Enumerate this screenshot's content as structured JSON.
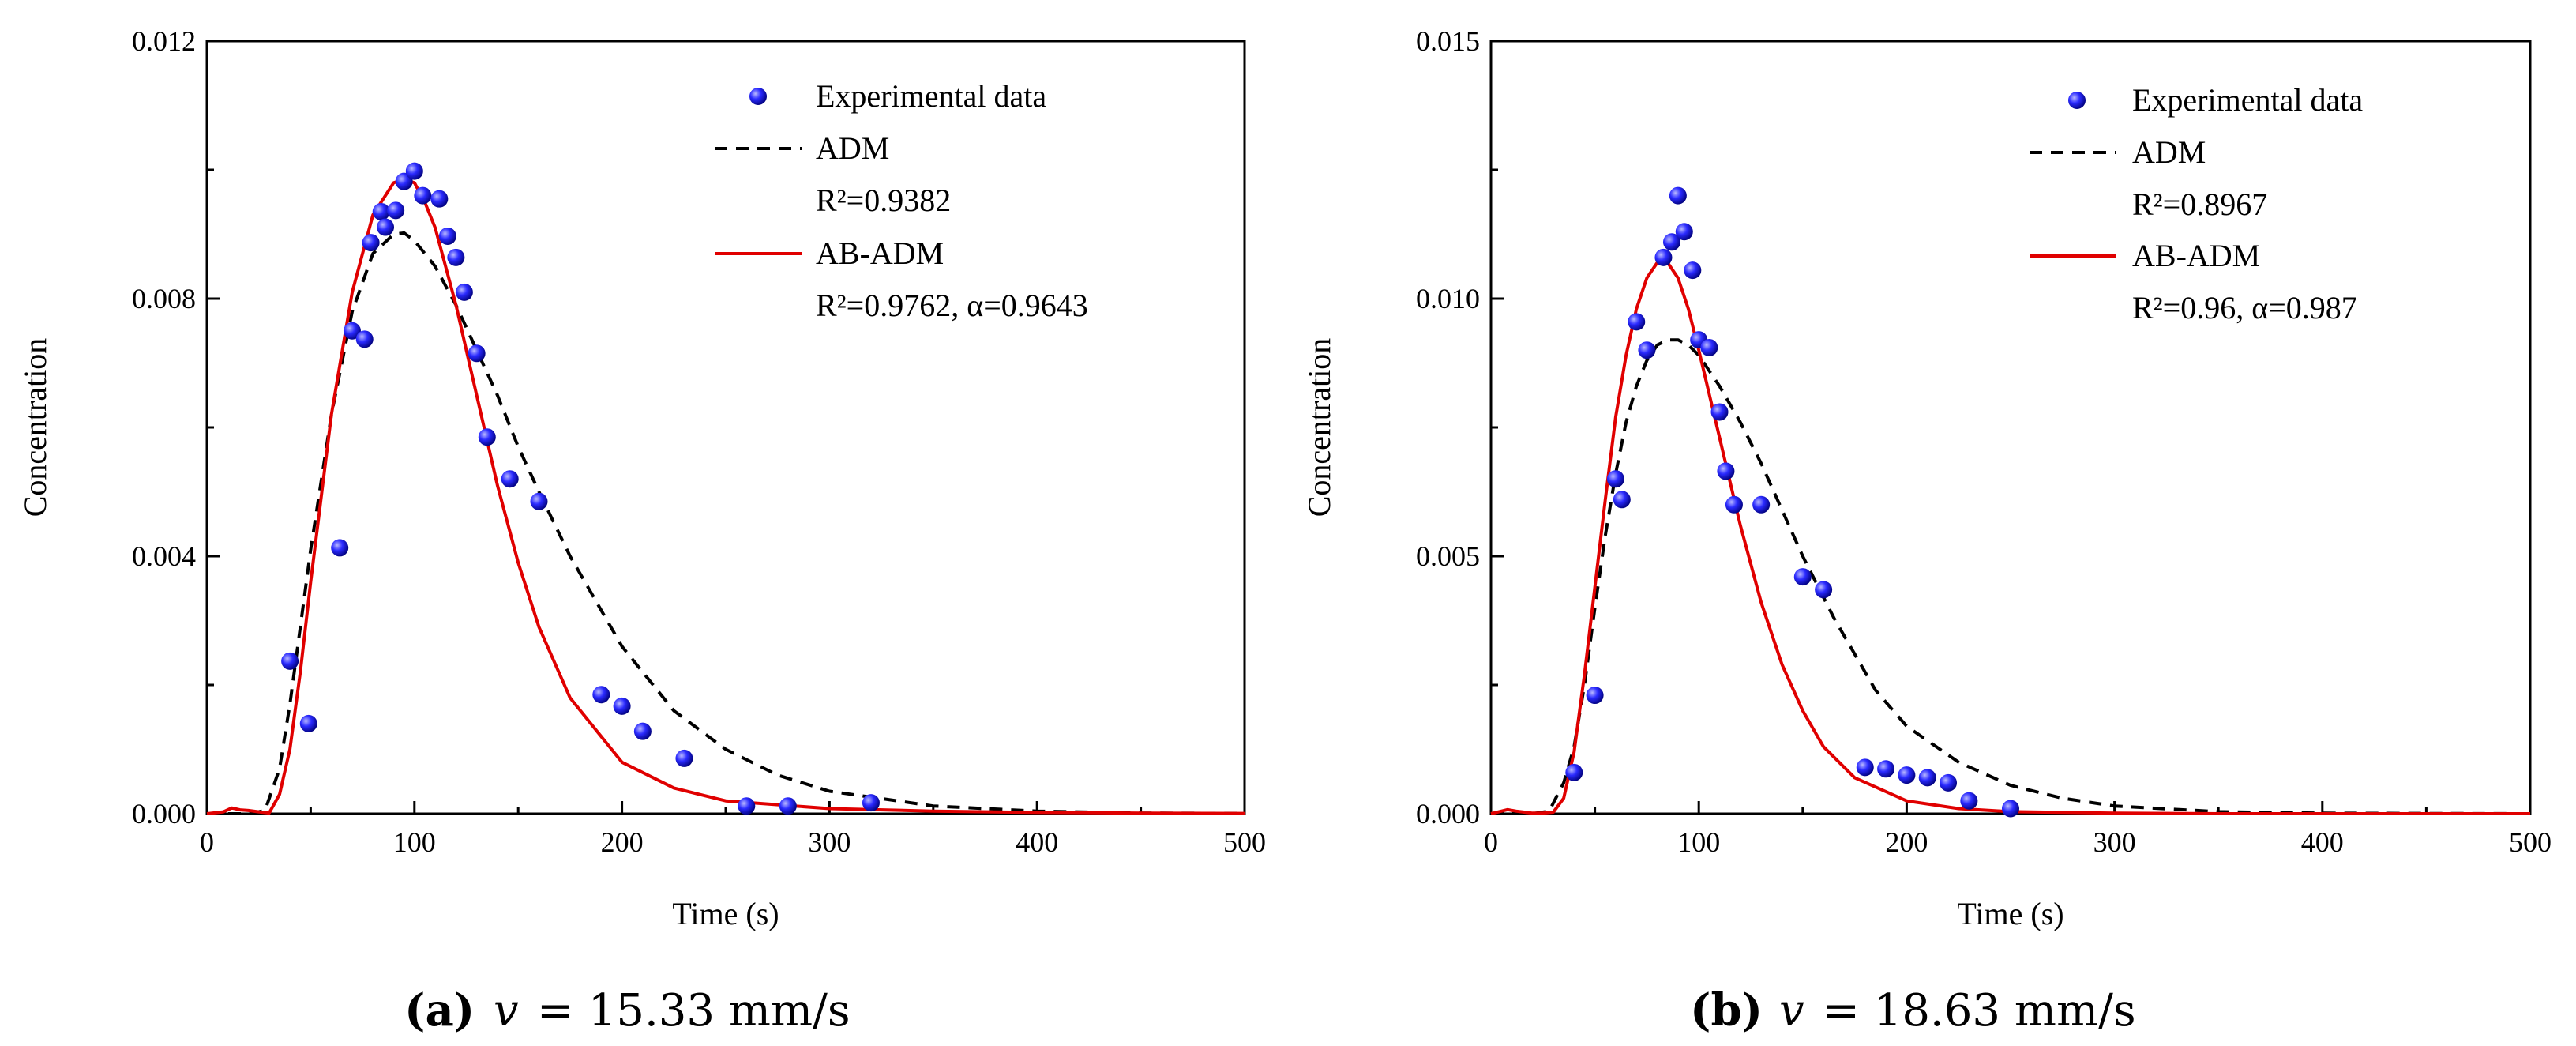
{
  "chart_data": [
    {
      "type": "scatter",
      "caption": {
        "label": "(a)",
        "var": "v",
        "eq": "= 15.33 mm/s"
      },
      "xlabel": "Time (s)",
      "ylabel": "Concentration",
      "xlim": [
        0,
        500
      ],
      "ylim": [
        0,
        0.012
      ],
      "xticks": [
        "0",
        "100",
        "200",
        "300",
        "400",
        "500"
      ],
      "yticks": [
        "0.000",
        "0.004",
        "0.008",
        "0.012"
      ],
      "legend": {
        "position": "top-right",
        "exp_label": "Experimental data",
        "adm_label": "ADM",
        "adm_r2": "R²=0.9382",
        "abadm_label": "AB-ADM",
        "abadm_stats": "R²=0.9762, α=0.9643"
      },
      "series": [
        {
          "name": "Experimental data",
          "x": [
            40,
            49,
            64,
            70,
            76,
            79,
            84,
            86,
            91,
            95,
            100,
            104,
            112,
            116,
            120,
            124,
            130,
            135,
            146,
            160,
            190,
            200,
            210,
            230,
            260,
            280,
            320
          ],
          "y": [
            0.00237,
            0.0014,
            0.00413,
            0.0075,
            0.00737,
            0.00887,
            0.00935,
            0.00911,
            0.00937,
            0.00982,
            0.00998,
            0.0096,
            0.00955,
            0.00897,
            0.00864,
            0.0081,
            0.00715,
            0.00585,
            0.0052,
            0.00485,
            0.00185,
            0.00167,
            0.00128,
            0.00086,
            0.00012,
            0.00012,
            0.00017
          ]
        },
        {
          "name": "ADM",
          "x": [
            0,
            20,
            28,
            35,
            40,
            45,
            50,
            60,
            70,
            80,
            90,
            95,
            100,
            110,
            120,
            130,
            140,
            150,
            160,
            175,
            200,
            225,
            250,
            275,
            300,
            350,
            400,
            450,
            500
          ],
          "y": [
            0,
            0,
            5e-05,
            0.0007,
            0.0017,
            0.0029,
            0.0041,
            0.0062,
            0.0078,
            0.0087,
            0.009,
            0.00902,
            0.0089,
            0.0085,
            0.0079,
            0.0072,
            0.0065,
            0.0057,
            0.005,
            0.004,
            0.0026,
            0.0016,
            0.001,
            0.0006,
            0.00035,
            0.00012,
            4e-05,
            1e-05,
            5e-06
          ]
        },
        {
          "name": "AB-ADM",
          "x": [
            0,
            8,
            12,
            16,
            20,
            25,
            30,
            35,
            40,
            45,
            50,
            60,
            70,
            80,
            90,
            95,
            100,
            105,
            110,
            120,
            130,
            140,
            150,
            160,
            175,
            200,
            225,
            250,
            300,
            350,
            400,
            450,
            500
          ],
          "y": [
            0,
            3e-05,
            9e-05,
            6e-05,
            5e-05,
            3e-05,
            1e-05,
            0.0003,
            0.001,
            0.0022,
            0.0036,
            0.0062,
            0.0081,
            0.0093,
            0.0098,
            0.00985,
            0.0098,
            0.0095,
            0.0091,
            0.0079,
            0.0065,
            0.0051,
            0.0039,
            0.0029,
            0.0018,
            0.0008,
            0.0004,
            0.0002,
            8e-05,
            4e-05,
            2e-05,
            1e-05,
            5e-06
          ]
        }
      ]
    },
    {
      "type": "scatter",
      "caption": {
        "label": "(b)",
        "var": "v",
        "eq": "= 18.63 mm/s"
      },
      "xlabel": "Time (s)",
      "ylabel": "Concentration",
      "xlim": [
        0,
        500
      ],
      "ylim": [
        0,
        0.015
      ],
      "xticks": [
        "0",
        "100",
        "200",
        "300",
        "400",
        "500"
      ],
      "yticks": [
        "0.000",
        "0.005",
        "0.010",
        "0.015"
      ],
      "legend": {
        "position": "top-right",
        "exp_label": "Experimental data",
        "adm_label": "ADM",
        "adm_r2": "R²=0.8967",
        "abadm_label": "AB-ADM",
        "abadm_stats": "R²=0.96, α=0.987"
      },
      "series": [
        {
          "name": "Experimental data",
          "x": [
            40,
            50,
            60,
            63,
            70,
            75,
            83,
            87,
            90,
            93,
            97,
            100,
            105,
            110,
            113,
            117,
            130,
            150,
            160,
            180,
            190,
            200,
            210,
            220,
            230,
            250
          ],
          "y": [
            0.0008,
            0.0023,
            0.0065,
            0.0061,
            0.00955,
            0.009,
            0.0108,
            0.0111,
            0.012,
            0.0113,
            0.01055,
            0.0092,
            0.00905,
            0.0078,
            0.00665,
            0.006,
            0.006,
            0.0046,
            0.00435,
            0.0009,
            0.00087,
            0.00075,
            0.0007,
            0.0006,
            0.00025,
            0.0001
          ]
        },
        {
          "name": "ADM",
          "x": [
            0,
            20,
            28,
            35,
            40,
            45,
            50,
            55,
            60,
            65,
            70,
            75,
            80,
            85,
            90,
            95,
            100,
            110,
            120,
            130,
            140,
            150,
            165,
            185,
            200,
            225,
            250,
            275,
            300,
            350,
            400,
            450,
            500
          ],
          "y": [
            0,
            0,
            5e-05,
            0.0006,
            0.0013,
            0.0025,
            0.004,
            0.0054,
            0.0066,
            0.0076,
            0.0083,
            0.0088,
            0.0091,
            0.0092,
            0.0092,
            0.0091,
            0.0089,
            0.0083,
            0.0076,
            0.0068,
            0.0059,
            0.005,
            0.0038,
            0.0024,
            0.0017,
            0.001,
            0.00055,
            0.0003,
            0.00015,
            4e-05,
            1e-05,
            5e-06,
            0
          ]
        },
        {
          "name": "AB-ADM",
          "x": [
            0,
            4,
            8,
            12,
            16,
            20,
            25,
            30,
            35,
            40,
            45,
            50,
            55,
            60,
            65,
            70,
            75,
            80,
            85,
            90,
            95,
            100,
            110,
            120,
            130,
            140,
            150,
            160,
            175,
            200,
            225,
            250,
            300,
            350,
            400,
            450,
            500
          ],
          "y": [
            0,
            4e-05,
            8e-05,
            5e-05,
            3e-05,
            1e-05,
            1e-05,
            3e-05,
            0.0003,
            0.0012,
            0.0027,
            0.0044,
            0.0061,
            0.0077,
            0.0089,
            0.0098,
            0.0104,
            0.0107,
            0.0107,
            0.0104,
            0.0098,
            0.009,
            0.0073,
            0.0056,
            0.0041,
            0.0029,
            0.002,
            0.0013,
            0.0007,
            0.00025,
            0.0001,
            4e-05,
            1e-05,
            0,
            0,
            0,
            0
          ]
        }
      ]
    }
  ]
}
